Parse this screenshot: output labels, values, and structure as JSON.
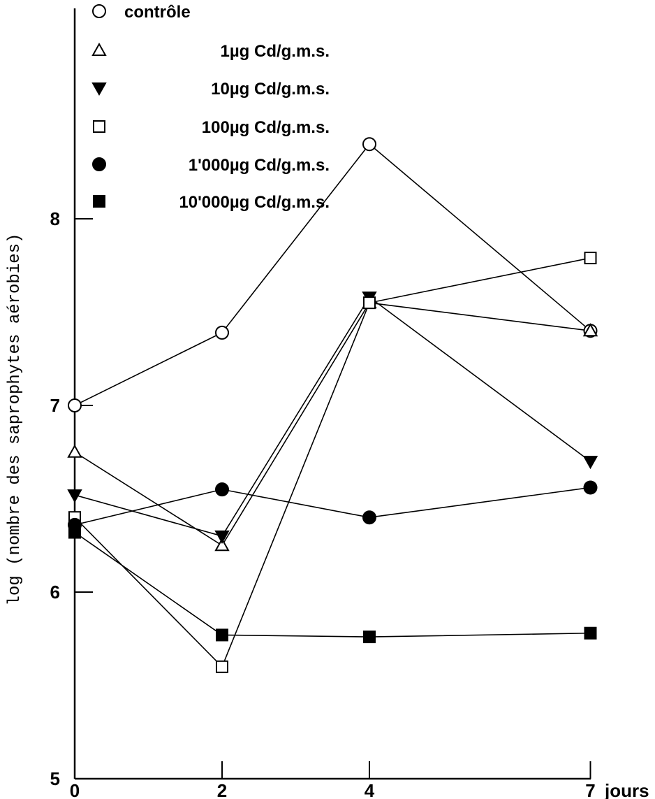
{
  "chart_data": {
    "type": "line",
    "xlabel": "jours",
    "ylabel": "log (nombre des saprophytes aérobies)",
    "xlim": [
      0,
      7
    ],
    "ylim": [
      5,
      9.1
    ],
    "x_ticks": [
      0,
      2,
      4,
      7
    ],
    "x_tick_labels": [
      "0",
      "2",
      "4",
      "7"
    ],
    "y_ticks": [
      5,
      6,
      7,
      8
    ],
    "y_tick_labels": [
      "5",
      "6",
      "7",
      "8"
    ],
    "grid": false,
    "legend_position": "top",
    "series": [
      {
        "name": "contrôle",
        "marker": "circle-open",
        "x": [
          0,
          2,
          4,
          7
        ],
        "values": [
          7.0,
          7.39,
          8.4,
          7.4
        ]
      },
      {
        "name": "1µg Cd/g.m.s.",
        "marker": "triangle-up-open",
        "x": [
          0,
          2,
          4,
          7
        ],
        "values": [
          6.75,
          6.25,
          7.55,
          7.4
        ]
      },
      {
        "name": "10µg Cd/g.m.s.",
        "marker": "triangle-down-filled",
        "x": [
          0,
          2,
          4,
          7
        ],
        "values": [
          6.52,
          6.3,
          7.58,
          6.7
        ]
      },
      {
        "name": "100µg Cd/g.m.s.",
        "marker": "square-open",
        "x": [
          0,
          2,
          4,
          7
        ],
        "values": [
          6.4,
          5.6,
          7.55,
          7.79
        ]
      },
      {
        "name": "1'000µg Cd/g.m.s.",
        "marker": "circle-filled",
        "x": [
          0,
          2,
          4,
          7
        ],
        "values": [
          6.36,
          6.55,
          6.4,
          6.56
        ]
      },
      {
        "name": "10'000µg Cd/g.m.s.",
        "marker": "square-filled",
        "x": [
          0,
          2,
          4,
          7
        ],
        "values": [
          6.32,
          5.77,
          5.76,
          5.78
        ]
      }
    ]
  }
}
